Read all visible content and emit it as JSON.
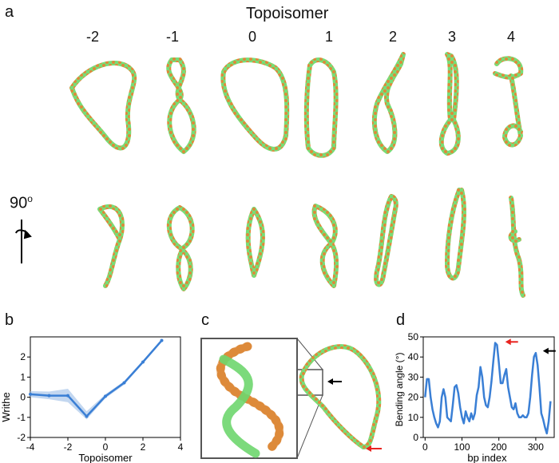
{
  "panels": {
    "a": "a",
    "b": "b",
    "c": "c",
    "d": "d"
  },
  "panel_a": {
    "title": "Topoisomer",
    "topoisomers": [
      "-2",
      "-1",
      "0",
      "1",
      "2",
      "3",
      "4"
    ],
    "rotation_label": "90",
    "rotation_degree_mark": "o"
  },
  "colors": {
    "strand_green": "#77dd77",
    "strand_orange": "#dd8a3a",
    "line_blue": "#3a7fd5",
    "band_blue": "#a9c6ea",
    "arrow_red": "#e8231f",
    "arrow_black": "#000000"
  },
  "chart_data": [
    {
      "panel": "b",
      "type": "line",
      "xlabel": "Topoisomer",
      "ylabel": "Writhe",
      "xlim": [
        -4,
        4
      ],
      "ylim": [
        -2,
        3
      ],
      "xticks": [
        "-4",
        "-2",
        "0",
        "2",
        "4"
      ],
      "yticks": [
        "-2",
        "-1",
        "0",
        "1",
        "2"
      ],
      "x": [
        -4,
        -3,
        -2,
        -1,
        0,
        1,
        2,
        3
      ],
      "y": [
        0.15,
        0.08,
        0.08,
        -0.95,
        0.05,
        0.72,
        1.75,
        2.82
      ],
      "band_low": [
        0.0,
        -0.1,
        -0.25,
        -1.1,
        -0.05,
        0.62,
        1.68,
        2.76
      ],
      "band_high": [
        0.3,
        0.28,
        0.42,
        -0.7,
        0.15,
        0.8,
        1.82,
        2.88
      ]
    },
    {
      "panel": "d",
      "type": "line",
      "xlabel": "bp index",
      "ylabel": "Bending angle (°)",
      "xlim": [
        -5,
        350
      ],
      "ylim": [
        0,
        50
      ],
      "xticks": [
        "0",
        "100",
        "200",
        "300"
      ],
      "yticks": [
        "0",
        "10",
        "20",
        "30",
        "40",
        "50"
      ],
      "x": [
        0,
        5,
        10,
        15,
        20,
        25,
        30,
        35,
        40,
        45,
        50,
        55,
        60,
        65,
        70,
        75,
        80,
        85,
        90,
        95,
        100,
        105,
        110,
        115,
        120,
        125,
        130,
        135,
        140,
        145,
        150,
        155,
        160,
        165,
        170,
        175,
        180,
        185,
        190,
        195,
        200,
        205,
        210,
        215,
        220,
        225,
        230,
        235,
        240,
        245,
        250,
        255,
        260,
        265,
        270,
        275,
        280,
        285,
        290,
        295,
        300,
        305,
        310,
        315,
        320,
        325,
        330,
        335,
        340
      ],
      "y": [
        20,
        29,
        29,
        20,
        14,
        10,
        7,
        5,
        8,
        20,
        24,
        20,
        10,
        9,
        8,
        16,
        25,
        26,
        22,
        15,
        10,
        7,
        13,
        10,
        8,
        12,
        9,
        12,
        21,
        25,
        35,
        30,
        20,
        16,
        15,
        20,
        28,
        38,
        47,
        46,
        37,
        27,
        27,
        31,
        34,
        25,
        20,
        15,
        14,
        17,
        12,
        10,
        10,
        11,
        10,
        10,
        12,
        20,
        31,
        40,
        42,
        36,
        25,
        12,
        9,
        5,
        2,
        8,
        18
      ]
    }
  ],
  "panel_d_markers": {
    "red_arrow_x": 200,
    "black_arrow_x": 315
  }
}
